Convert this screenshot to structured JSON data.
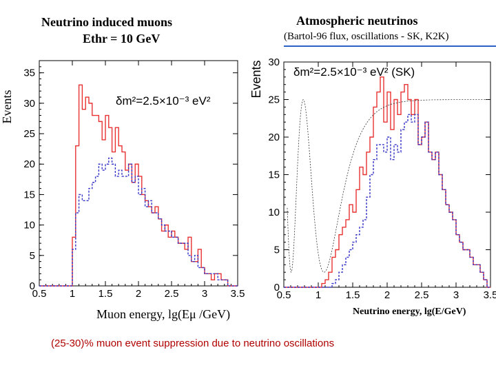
{
  "left_title": {
    "line1": "Neutrino induced muons",
    "line2": "Ethr = 10 GeV"
  },
  "right_title": {
    "line1": "Atmospheric neutrinos",
    "line2": "(Bartol-96 flux, oscillations - SK, K2K)"
  },
  "caption": "(25-30)%  muon event suppression due to neutrino oscillations",
  "colors": {
    "no_oscillation": "#e83030",
    "with_oscillation": "#3535c8",
    "both": "#b02060",
    "caption": "#b00000",
    "title_rule": "#2a60c8"
  },
  "chart_data": [
    {
      "type": "line",
      "title": "Neutrino induced muons",
      "xlabel": "Muon energy, lg(Eμ /GeV)",
      "ylabel": "Events",
      "annotation": "δm²=2.5×10⁻³ eV²",
      "xlim": [
        0.5,
        3.5
      ],
      "ylim": [
        0,
        37
      ],
      "xticks": [
        "0.5",
        "1",
        "1.5",
        "2",
        "2.5",
        "3",
        "3.5"
      ],
      "yticks": [
        "0",
        "5",
        "10",
        "15",
        "20",
        "25",
        "30",
        "35"
      ],
      "bin_width": 0.05,
      "x": [
        0.5,
        0.55,
        0.6,
        0.65,
        0.7,
        0.75,
        0.8,
        0.85,
        0.9,
        0.95,
        1.0,
        1.05,
        1.1,
        1.15,
        1.2,
        1.25,
        1.3,
        1.35,
        1.4,
        1.45,
        1.5,
        1.55,
        1.6,
        1.65,
        1.7,
        1.75,
        1.8,
        1.85,
        1.9,
        1.95,
        2.0,
        2.05,
        2.1,
        2.15,
        2.2,
        2.25,
        2.3,
        2.35,
        2.4,
        2.45,
        2.5,
        2.55,
        2.6,
        2.65,
        2.7,
        2.75,
        2.8,
        2.85,
        2.9,
        2.95,
        3.0,
        3.05,
        3.1,
        3.15,
        3.2,
        3.25,
        3.3,
        3.35,
        3.4,
        3.45
      ],
      "series": [
        {
          "name": "",
          "values": [
            0,
            0,
            0,
            0,
            0,
            0,
            0,
            0,
            0,
            0,
            8,
            23,
            33,
            29,
            31,
            30,
            28,
            28,
            27,
            24,
            28,
            26,
            22,
            26,
            23,
            22,
            19,
            20,
            17,
            20,
            18,
            15,
            14,
            13,
            12,
            13,
            11,
            9,
            10,
            8,
            9,
            8,
            7,
            7,
            6,
            8,
            4,
            4,
            6,
            3,
            2,
            2,
            1,
            2,
            2,
            1,
            1,
            0,
            0,
            0
          ]
        },
        {
          "name": "",
          "values": [
            0,
            0,
            0,
            0,
            0,
            0,
            0,
            0,
            0,
            0,
            6,
            12,
            15,
            14,
            14,
            16,
            17,
            18,
            20,
            19,
            20,
            21,
            20,
            18,
            19,
            18,
            18,
            20,
            17,
            18,
            15,
            16,
            13,
            14,
            12,
            12,
            11,
            10,
            9,
            9,
            8,
            8,
            7,
            7,
            7,
            5,
            4,
            5,
            3,
            3,
            2,
            2,
            2,
            2,
            1,
            1,
            1,
            0,
            0,
            0
          ]
        }
      ]
    },
    {
      "type": "line",
      "title": "Atmospheric neutrinos",
      "xlabel": "Neutrino energy, lg(E/GeV)",
      "ylabel": "Events",
      "annotation": "δm²=2.5×10⁻³ eV² (SK)",
      "xlim": [
        0.5,
        3.5
      ],
      "ylim": [
        0,
        30
      ],
      "xticks": [
        "0.5",
        "1",
        "1.5",
        "2",
        "2.5",
        "3",
        "3.5"
      ],
      "yticks": [
        "0",
        "5",
        "10",
        "15",
        "20",
        "25",
        "30"
      ],
      "bin_width": 0.05,
      "x": [
        0.5,
        0.55,
        0.6,
        0.65,
        0.7,
        0.75,
        0.8,
        0.85,
        0.9,
        0.95,
        1.0,
        1.05,
        1.1,
        1.15,
        1.2,
        1.25,
        1.3,
        1.35,
        1.4,
        1.45,
        1.5,
        1.55,
        1.6,
        1.65,
        1.7,
        1.75,
        1.8,
        1.85,
        1.9,
        1.95,
        2.0,
        2.05,
        2.1,
        2.15,
        2.2,
        2.25,
        2.3,
        2.35,
        2.4,
        2.45,
        2.5,
        2.55,
        2.6,
        2.65,
        2.7,
        2.75,
        2.8,
        2.85,
        2.9,
        2.95,
        3.0,
        3.05,
        3.1,
        3.15,
        3.2,
        3.25,
        3.3,
        3.35,
        3.4,
        3.45
      ],
      "series": [
        {
          "name": "",
          "values": [
            0,
            0,
            0,
            0,
            0,
            0,
            0,
            0,
            0,
            0,
            0,
            0.5,
            1,
            2,
            4,
            5,
            7,
            8,
            9,
            11,
            10,
            13,
            16,
            15,
            18,
            20,
            24,
            26,
            28,
            22,
            26,
            21,
            25,
            23,
            26,
            27,
            25,
            23,
            25,
            19,
            20,
            22,
            18,
            17,
            18,
            15,
            13,
            11,
            10,
            9,
            7,
            6,
            5,
            5,
            4,
            3,
            3,
            2,
            1,
            0
          ]
        },
        {
          "name": "",
          "values": [
            0,
            0,
            0,
            0,
            0,
            0,
            0,
            0,
            0,
            0,
            0,
            0,
            0,
            0,
            0.5,
            1,
            2,
            3,
            4,
            5,
            6,
            7,
            8,
            9,
            12,
            15,
            17,
            19,
            19,
            18,
            20,
            17,
            19,
            18,
            21,
            22,
            23,
            22,
            23,
            19,
            20,
            22,
            18,
            17,
            18,
            15,
            13,
            11,
            10,
            9,
            7,
            6,
            5,
            5,
            4,
            3,
            3,
            2,
            1,
            0
          ]
        }
      ]
    }
  ]
}
